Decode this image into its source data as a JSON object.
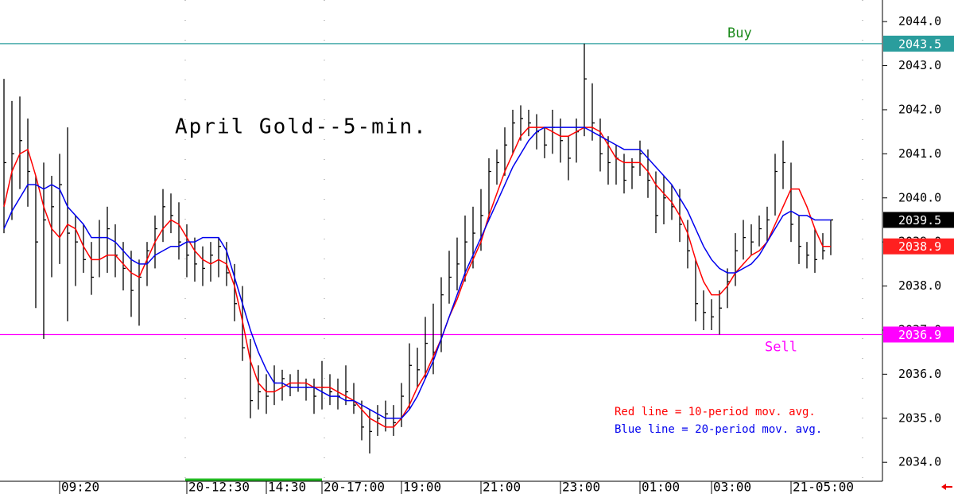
{
  "chart_data": {
    "type": "hlc_bar",
    "title": "April Gold--5-min.",
    "annotations": [
      "Red line = 10-period mov. avg.",
      "Blue line = 20-period mov. avg."
    ],
    "categories": [
      null,
      null,
      null,
      null,
      null,
      null,
      null,
      "09:20",
      null,
      null,
      null,
      null,
      null,
      null,
      null,
      null,
      null,
      null,
      null,
      null,
      null,
      null,
      null,
      "20-12:30",
      null,
      null,
      null,
      null,
      null,
      null,
      null,
      null,
      null,
      "14:30",
      null,
      null,
      null,
      null,
      null,
      null,
      "20-17:00",
      null,
      null,
      null,
      null,
      null,
      null,
      null,
      null,
      null,
      "19:00",
      null,
      null,
      null,
      null,
      null,
      null,
      null,
      null,
      null,
      "21:00",
      null,
      null,
      null,
      null,
      null,
      null,
      null,
      null,
      null,
      "23:00",
      null,
      null,
      null,
      null,
      null,
      null,
      null,
      null,
      null,
      "01:00",
      null,
      null,
      null,
      null,
      null,
      null,
      null,
      null,
      "03:00",
      null,
      null,
      null,
      null,
      null,
      null,
      null,
      null,
      null,
      "21-05:00",
      null,
      null,
      null,
      null,
      null
    ],
    "bars": {
      "color": "#000000",
      "high": [
        2042.7,
        2042.2,
        2042.3,
        2041.8,
        2040.5,
        2040.8,
        2040.5,
        2041.0,
        2041.6,
        2039.6,
        2039.4,
        2039.0,
        2039.5,
        2039.8,
        2039.4,
        2039.0,
        2038.8,
        2038.6,
        2039.0,
        2039.6,
        2040.2,
        2040.1,
        2039.9,
        2039.4,
        2039.1,
        2038.9,
        2039.0,
        2039.1,
        2039.0,
        2038.5,
        2038.0,
        2036.8,
        2036.2,
        2036.0,
        2036.2,
        2036.1,
        2036.0,
        2036.1,
        2035.9,
        2035.9,
        2036.3,
        2036.0,
        2035.9,
        2036.2,
        2035.8,
        2035.4,
        2035.2,
        2035.3,
        2035.4,
        2035.3,
        2035.8,
        2036.7,
        2036.6,
        2037.3,
        2037.6,
        2038.2,
        2038.8,
        2039.1,
        2039.6,
        2039.8,
        2040.2,
        2040.9,
        2041.1,
        2041.6,
        2042.0,
        2042.1,
        2042.0,
        2041.9,
        2041.6,
        2042.0,
        2041.8,
        2041.4,
        2041.8,
        2043.5,
        2042.6,
        2041.8,
        2041.4,
        2041.2,
        2041.0,
        2040.9,
        2041.3,
        2041.1,
        2040.6,
        2040.5,
        2040.3,
        2040.2,
        2039.5,
        2038.6,
        2037.9,
        2037.7,
        2037.9,
        2038.4,
        2039.2,
        2039.5,
        2039.4,
        2039.6,
        2039.8,
        2041.0,
        2041.3,
        2040.8,
        2039.6,
        2039.0,
        2039.3,
        2039.2,
        2039.5
      ],
      "low": [
        2039.2,
        2039.5,
        2040.2,
        2039.8,
        2037.5,
        2036.8,
        2038.2,
        2038.5,
        2037.2,
        2038.0,
        2038.3,
        2037.8,
        2038.2,
        2038.3,
        2038.2,
        2037.9,
        2037.3,
        2037.1,
        2038.0,
        2038.4,
        2039.0,
        2039.2,
        2038.6,
        2038.2,
        2038.1,
        2038.0,
        2038.1,
        2038.2,
        2038.0,
        2037.2,
        2036.3,
        2035.0,
        2035.2,
        2035.1,
        2035.3,
        2035.4,
        2035.5,
        2035.6,
        2035.4,
        2035.1,
        2035.2,
        2035.3,
        2035.2,
        2035.3,
        2035.1,
        2034.5,
        2034.2,
        2034.6,
        2034.7,
        2034.6,
        2034.8,
        2035.2,
        2035.7,
        2035.9,
        2036.0,
        2036.5,
        2037.6,
        2037.9,
        2038.1,
        2038.4,
        2038.8,
        2039.5,
        2040.3,
        2040.5,
        2041.0,
        2041.3,
        2041.4,
        2041.1,
        2040.9,
        2041.0,
        2040.8,
        2040.4,
        2040.8,
        2041.4,
        2041.3,
        2040.6,
        2040.3,
        2040.3,
        2040.1,
        2040.2,
        2040.5,
        2040.0,
        2039.2,
        2039.4,
        2039.5,
        2039.0,
        2038.4,
        2037.2,
        2037.0,
        2037.0,
        2036.9,
        2037.5,
        2038.0,
        2038.6,
        2038.7,
        2038.9,
        2039.0,
        2039.6,
        2040.2,
        2039.0,
        2038.5,
        2038.4,
        2038.3,
        2038.6,
        2038.7
      ],
      "close": [
        2040.8,
        2041.0,
        2041.3,
        2040.6,
        2039.0,
        2039.5,
        2039.8,
        2040.3,
        2039.2,
        2039.0,
        2038.6,
        2038.2,
        2039.1,
        2039.3,
        2038.7,
        2038.4,
        2037.9,
        2038.2,
        2038.8,
        2039.3,
        2039.8,
        2039.6,
        2039.0,
        2038.7,
        2038.5,
        2038.4,
        2038.7,
        2038.9,
        2038.3,
        2037.6,
        2036.6,
        2035.4,
        2035.6,
        2035.5,
        2035.8,
        2035.9,
        2035.7,
        2035.8,
        2035.7,
        2035.5,
        2035.7,
        2035.6,
        2035.5,
        2035.6,
        2035.3,
        2034.8,
        2034.7,
        2035.0,
        2035.1,
        2034.9,
        2035.5,
        2036.2,
        2036.1,
        2036.7,
        2036.5,
        2037.8,
        2038.2,
        2038.5,
        2039.0,
        2039.2,
        2039.6,
        2040.6,
        2040.8,
        2041.2,
        2041.7,
        2041.8,
        2041.7,
        2041.5,
        2041.2,
        2041.6,
        2041.3,
        2040.9,
        2041.5,
        2042.7,
        2041.7,
        2041.0,
        2040.8,
        2040.9,
        2040.4,
        2040.7,
        2041.0,
        2040.4,
        2039.6,
        2040.0,
        2039.8,
        2039.4,
        2038.8,
        2037.6,
        2037.4,
        2037.3,
        2037.5,
        2038.1,
        2038.8,
        2039.1,
        2039.0,
        2039.3,
        2039.5,
        2040.6,
        2040.8,
        2039.4,
        2038.9,
        2038.7,
        2038.6,
        2038.8,
        2039.5
      ]
    },
    "moving_averages": [
      {
        "color": "#ff0000",
        "values": [
          2039.8,
          2040.6,
          2041.0,
          2041.1,
          2040.5,
          2039.8,
          2039.3,
          2039.1,
          2039.4,
          2039.3,
          2038.9,
          2038.6,
          2038.6,
          2038.7,
          2038.7,
          2038.5,
          2038.3,
          2038.2,
          2038.6,
          2039.0,
          2039.3,
          2039.5,
          2039.4,
          2039.1,
          2038.8,
          2038.6,
          2038.5,
          2038.6,
          2038.5,
          2038.0,
          2037.2,
          2036.3,
          2035.8,
          2035.6,
          2035.6,
          2035.7,
          2035.8,
          2035.8,
          2035.8,
          2035.7,
          2035.7,
          2035.7,
          2035.6,
          2035.5,
          2035.4,
          2035.2,
          2035.0,
          2034.9,
          2034.8,
          2034.8,
          2035.0,
          2035.3,
          2035.7,
          2036.0,
          2036.4,
          2036.8,
          2037.3,
          2037.7,
          2038.2,
          2038.6,
          2039.0,
          2039.6,
          2040.1,
          2040.6,
          2041.0,
          2041.4,
          2041.6,
          2041.6,
          2041.6,
          2041.5,
          2041.4,
          2041.4,
          2041.5,
          2041.6,
          2041.6,
          2041.5,
          2041.2,
          2040.9,
          2040.8,
          2040.8,
          2040.8,
          2040.6,
          2040.3,
          2040.1,
          2039.9,
          2039.6,
          2039.2,
          2038.6,
          2038.1,
          2037.8,
          2037.8,
          2038.0,
          2038.3,
          2038.5,
          2038.7,
          2038.8,
          2039.0,
          2039.4,
          2039.8,
          2040.2,
          2040.2,
          2039.8,
          2039.3,
          2038.9,
          2038.9
        ]
      },
      {
        "color": "#0000ee",
        "values": [
          2039.3,
          2039.7,
          2040.0,
          2040.3,
          2040.3,
          2040.2,
          2040.3,
          2040.2,
          2039.8,
          2039.6,
          2039.4,
          2039.1,
          2039.1,
          2039.1,
          2039.0,
          2038.8,
          2038.6,
          2038.5,
          2038.5,
          2038.7,
          2038.8,
          2038.9,
          2038.9,
          2039.0,
          2039.0,
          2039.1,
          2039.1,
          2039.1,
          2038.8,
          2038.2,
          2037.6,
          2037.0,
          2036.5,
          2036.1,
          2035.8,
          2035.8,
          2035.7,
          2035.7,
          2035.7,
          2035.7,
          2035.6,
          2035.5,
          2035.5,
          2035.4,
          2035.4,
          2035.3,
          2035.2,
          2035.1,
          2035.0,
          2035.0,
          2035.0,
          2035.2,
          2035.5,
          2035.9,
          2036.3,
          2036.8,
          2037.3,
          2037.8,
          2038.3,
          2038.7,
          2039.1,
          2039.5,
          2039.9,
          2040.3,
          2040.7,
          2041.0,
          2041.3,
          2041.5,
          2041.6,
          2041.6,
          2041.6,
          2041.6,
          2041.6,
          2041.6,
          2041.5,
          2041.4,
          2041.3,
          2041.2,
          2041.1,
          2041.1,
          2041.1,
          2040.9,
          2040.7,
          2040.5,
          2040.3,
          2040.0,
          2039.7,
          2039.3,
          2038.9,
          2038.6,
          2038.4,
          2038.3,
          2038.3,
          2038.4,
          2038.5,
          2038.7,
          2039.0,
          2039.3,
          2039.6,
          2039.7,
          2039.6,
          2039.6,
          2039.5,
          2039.5,
          2039.5
        ]
      }
    ],
    "levels": [
      {
        "name": "Buy",
        "value": 2043.5,
        "value_label": "2043.5",
        "color": "#2a9d9d",
        "text_color": "#1a8a1a"
      },
      {
        "name": "Sell",
        "value": 2036.9,
        "value_label": "2036.9",
        "color": "#ff00ff",
        "text_color": "#ff00ff"
      }
    ],
    "price_tags": [
      {
        "value": 2039.5,
        "label": "2039.5",
        "color": "#000000"
      },
      {
        "value": 2038.9,
        "label": "2038.9",
        "color": "#ff2020"
      }
    ],
    "ylim": [
      2033.57,
      2044.49
    ],
    "yticks": [
      {
        "value": 2034,
        "label": "2034.0"
      },
      {
        "value": 2035,
        "label": "2035.0"
      },
      {
        "value": 2036,
        "label": "2036.0"
      },
      {
        "value": 2037,
        "label": "2037.0"
      },
      {
        "value": 2038,
        "label": "2038.0"
      },
      {
        "value": 2039,
        "label": "2039.0"
      },
      {
        "value": 2040,
        "label": "2040.0"
      },
      {
        "value": 2041,
        "label": "2041.0"
      },
      {
        "value": 2042,
        "label": "2042.0"
      },
      {
        "value": 2043,
        "label": "2043.0"
      },
      {
        "value": 2044,
        "label": "2044.0"
      }
    ]
  }
}
